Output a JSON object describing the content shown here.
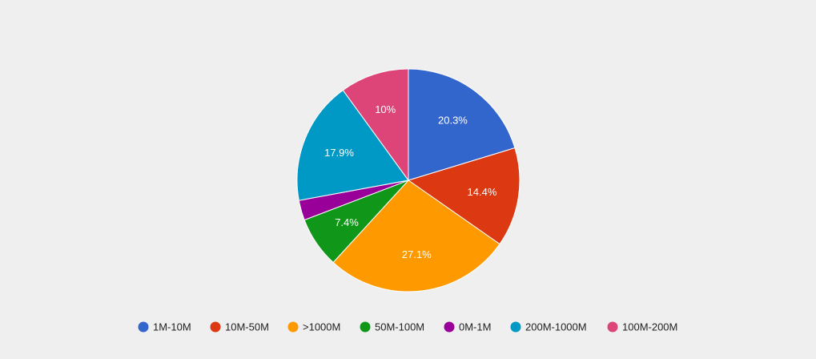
{
  "chart_data": {
    "type": "pie",
    "slices": [
      {
        "label": "1M-10M",
        "value": 20.3,
        "color": "#3366cc",
        "display": "20.3%"
      },
      {
        "label": "10M-50M",
        "value": 14.4,
        "color": "#dc3912",
        "display": "14.4%"
      },
      {
        "label": ">1000M",
        "value": 27.1,
        "color": "#ff9900",
        "display": "27.1%"
      },
      {
        "label": "50M-100M",
        "value": 7.4,
        "color": "#109618",
        "display": "7.4%"
      },
      {
        "label": "0M-1M",
        "value": 2.9,
        "color": "#990099",
        "display": ""
      },
      {
        "label": "200M-1000M",
        "value": 17.9,
        "color": "#0099c6",
        "display": "17.9%"
      },
      {
        "label": "100M-200M",
        "value": 10,
        "color": "#dd4477",
        "display": "10%"
      }
    ],
    "legend_position": "bottom",
    "start_angle_deg": 0,
    "direction": "clockwise"
  },
  "background_color": "#efefef"
}
